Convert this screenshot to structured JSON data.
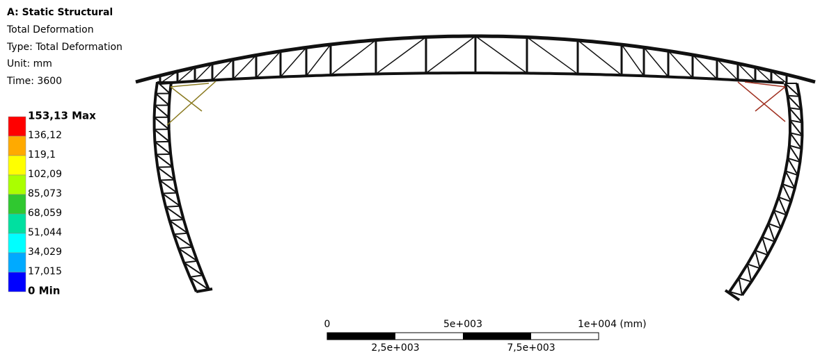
{
  "header": {
    "title": "A: Static Structural",
    "lines": [
      "Total Deformation",
      "Type: Total Deformation",
      "Unit: mm",
      "Time: 3600"
    ]
  },
  "legend": {
    "labels": [
      "153,13 Max",
      "136,12",
      "119,1",
      "102,09",
      "85,073",
      "68,059",
      "51,044",
      "34,029",
      "17,015",
      "0 Min"
    ],
    "colors": [
      "#ff0000",
      "#ffaa00",
      "#ffff00",
      "#aaff00",
      "#30c830",
      "#00e0a0",
      "#00ffff",
      "#00aaff",
      "#0000ff"
    ]
  },
  "scale_bar": {
    "top_labels": [
      "0",
      "5e+003",
      "1e+004 (mm)"
    ],
    "bottom_labels": [
      "2,5e+003",
      "7,5e+003"
    ]
  }
}
